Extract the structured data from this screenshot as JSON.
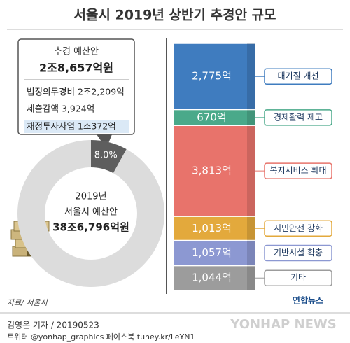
{
  "title": "서울시 2019년 상반기 추경안 규모",
  "callout": {
    "title": "추경 예산안",
    "total": "2조8,657억원",
    "items": [
      "법정의무경비 2조2,209억",
      "세출감액 3,924억",
      "재정투자사업 1조372억"
    ]
  },
  "chart_data": [
    {
      "type": "pie",
      "center_lines": [
        "2019년",
        "서울시 예산안",
        "38조6,796억원"
      ],
      "values": [
        8.0
      ],
      "value_labels": [
        "8.0%"
      ],
      "color": "#5e5e5e"
    },
    {
      "type": "bar",
      "stacked": true,
      "series": [
        {
          "name": "대기질 개선",
          "color": "#3f7cbf",
          "values": [
            2775
          ],
          "value_labels": [
            "2,775억"
          ]
        },
        {
          "name": "경제활력 제고",
          "color": "#4aa98a",
          "values": [
            670
          ],
          "value_labels": [
            "670억"
          ]
        },
        {
          "name": "복지서비스 확대",
          "color": "#e8736b",
          "values": [
            3813
          ],
          "value_labels": [
            "3,813억"
          ]
        },
        {
          "name": "시민안전 강화",
          "color": "#e3a93c",
          "values": [
            1013
          ],
          "value_labels": [
            "1,013억"
          ]
        },
        {
          "name": "기반시설 확충",
          "color": "#8c98d2",
          "values": [
            1057
          ],
          "value_labels": [
            "1,057억"
          ]
        },
        {
          "name": "기타",
          "color": "#9c9c9c",
          "values": [
            1044
          ],
          "value_labels": [
            "1,044억"
          ]
        }
      ]
    }
  ],
  "source": "자료/ 서울시",
  "byline": "김영은 기자 / 20190523",
  "social": "트위터 @yonhap_graphics  페이스북 tuney.kr/LeYN1",
  "logo": "연합뉴스",
  "watermark": "YONHAP NEWS"
}
